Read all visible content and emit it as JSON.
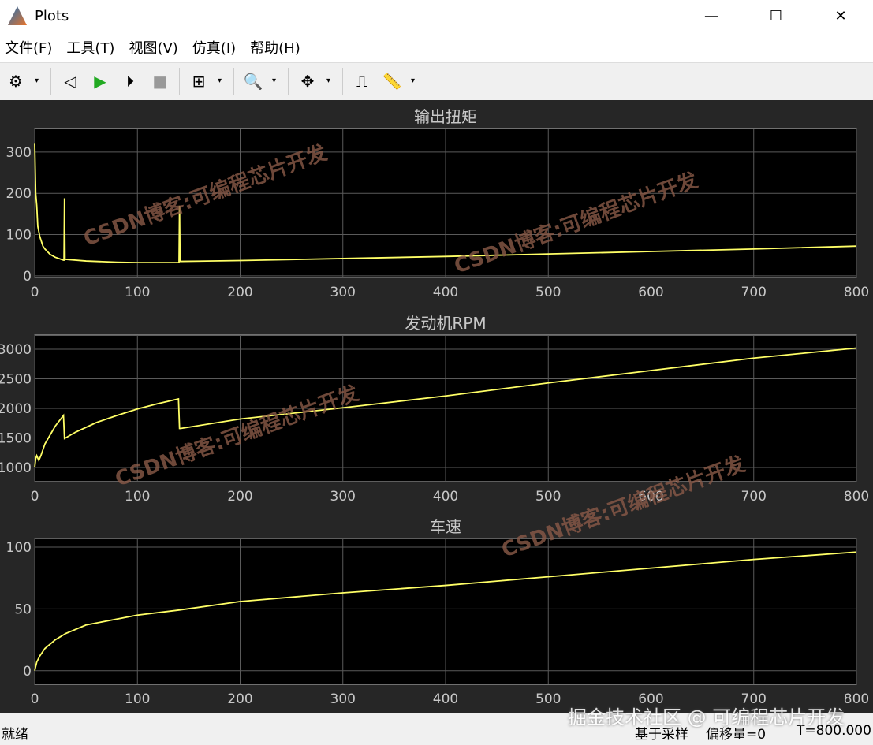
{
  "window": {
    "title": "Plots",
    "minimize": "—",
    "maximize": "☐",
    "close": "✕"
  },
  "menu": [
    "文件(F)",
    "工具(T)",
    "视图(V)",
    "仿真(I)",
    "帮助(H)"
  ],
  "toolbar": [
    {
      "name": "settings-icon",
      "glyph": "⚙"
    },
    {
      "name": "step-back-icon",
      "glyph": "◁"
    },
    {
      "name": "run-icon",
      "glyph": "▶"
    },
    {
      "name": "step-forward-icon",
      "glyph": "⏵"
    },
    {
      "name": "stop-icon",
      "glyph": "■"
    },
    {
      "name": "highlight-block-icon",
      "glyph": "⊞"
    },
    {
      "name": "zoom-in-icon",
      "glyph": "🔍"
    },
    {
      "name": "fit-view-icon",
      "glyph": "✥"
    },
    {
      "name": "triggers-icon",
      "glyph": "⎍"
    },
    {
      "name": "measure-icon",
      "glyph": "📏"
    }
  ],
  "status": {
    "left": "就绪",
    "mode": "基于采样",
    "offset": "偏移量=0",
    "time": "T=800.000"
  },
  "watermarks": {
    "plot": "CSDN博客:可编程芯片开发",
    "footer": "掘金技术社区 @ 可编程芯片开发"
  },
  "colors": {
    "line": "#ffff66",
    "axes_bg": "#000000",
    "figure_bg": "#262626",
    "grid": "#5a5a5a",
    "text": "#c8c8c8"
  },
  "chart_data": [
    {
      "type": "line",
      "title": "输出扭矩",
      "xlim": [
        0,
        800
      ],
      "ylim": [
        -4,
        357
      ],
      "xticks": [
        0,
        100,
        200,
        300,
        400,
        500,
        600,
        700,
        800
      ],
      "yticks": [
        0,
        100,
        200,
        300
      ],
      "grid": true,
      "x": [
        0,
        1,
        2,
        3,
        5,
        8,
        10,
        15,
        20,
        28,
        28.5,
        29,
        29.5,
        30,
        50,
        80,
        100,
        140,
        140.5,
        141,
        141.5,
        143,
        200,
        300,
        400,
        500,
        600,
        700,
        800
      ],
      "y": [
        320,
        200,
        170,
        120,
        95,
        72,
        65,
        52,
        45,
        38,
        38,
        188,
        40,
        40,
        36,
        33,
        32,
        32,
        32,
        170,
        35,
        35,
        37,
        42,
        47,
        53,
        59,
        65,
        72
      ]
    },
    {
      "type": "line",
      "title": "发动机RPM",
      "xlim": [
        0,
        800
      ],
      "ylim": [
        760,
        3240
      ],
      "xticks": [
        0,
        100,
        200,
        300,
        400,
        500,
        600,
        700,
        800
      ],
      "yticks": [
        1000,
        1500,
        2000,
        2500,
        3000
      ],
      "grid": true,
      "x": [
        0,
        1,
        2,
        4,
        6,
        10,
        15,
        20,
        28,
        29,
        30,
        40,
        60,
        80,
        100,
        120,
        140,
        141,
        142,
        200,
        300,
        400,
        500,
        600,
        700,
        800
      ],
      "y": [
        1000,
        1150,
        1200,
        1120,
        1200,
        1400,
        1550,
        1700,
        1880,
        1490,
        1500,
        1600,
        1760,
        1880,
        1990,
        2080,
        2160,
        1660,
        1660,
        1820,
        2010,
        2210,
        2430,
        2640,
        2850,
        3020
      ]
    },
    {
      "type": "line",
      "title": "车速",
      "xlim": [
        0,
        800
      ],
      "ylim": [
        -11,
        107
      ],
      "xticks": [
        0,
        100,
        200,
        300,
        400,
        500,
        600,
        700,
        800
      ],
      "yticks": [
        0,
        50,
        100
      ],
      "grid": true,
      "x": [
        0,
        2,
        5,
        10,
        20,
        30,
        50,
        75,
        100,
        140,
        200,
        300,
        400,
        500,
        600,
        700,
        800
      ],
      "y": [
        0,
        7,
        12,
        18,
        25,
        30,
        37,
        41,
        45,
        49,
        56,
        63,
        69,
        76,
        83,
        90,
        96
      ]
    }
  ]
}
